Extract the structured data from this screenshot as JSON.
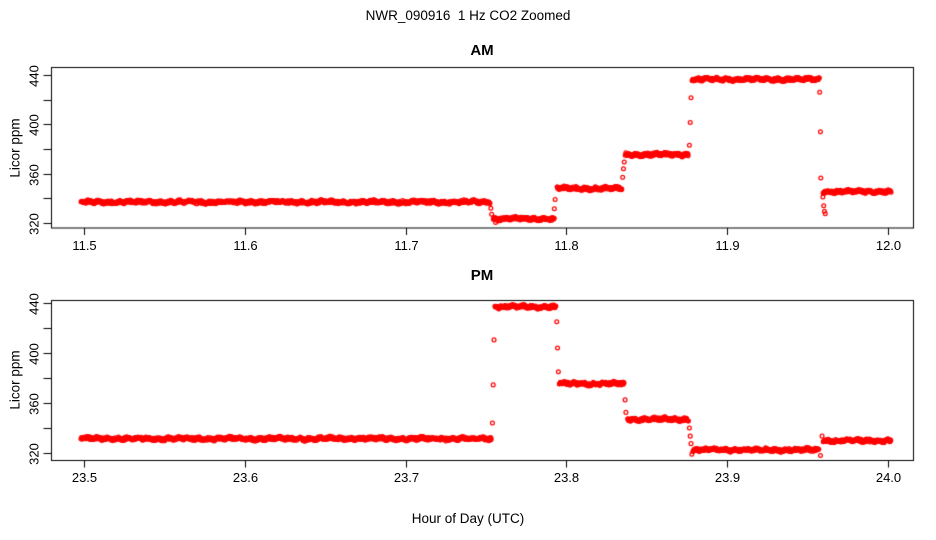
{
  "page": {
    "title": "NWR_090916  1 Hz CO2 Zoomed",
    "xlabel": "Hour of Day (UTC)",
    "background_color": "#ffffff",
    "axis_color": "#000000"
  },
  "chart_data": [
    {
      "type": "scatter",
      "panel": "AM",
      "title": "AM",
      "ylabel": "Licor ppm",
      "marker": "open-circle",
      "point_color": "#ff0000",
      "grid": false,
      "legend": false,
      "xlim": [
        11.5,
        12.0
      ],
      "ylim": [
        314,
        446
      ],
      "xticks": {
        "values": [
          11.5,
          11.6,
          11.7,
          11.8,
          11.9,
          12.0
        ],
        "labels": [
          "11.5",
          "11.6",
          "11.7",
          "11.8",
          "11.9",
          "12.0"
        ]
      },
      "yticks": [
        {
          "v": 320,
          "label": "320"
        },
        {
          "v": 340,
          "label": ""
        },
        {
          "v": 360,
          "label": "360"
        },
        {
          "v": 380,
          "label": ""
        },
        {
          "v": 400,
          "label": "400"
        },
        {
          "v": 420,
          "label": ""
        },
        {
          "v": 440,
          "label": "440"
        }
      ],
      "noise_ppm": 1.1,
      "steps": [
        {
          "x_start": 11.498,
          "x_end": 11.7525,
          "ppm": 337.0
        },
        {
          "x_start": 11.7545,
          "x_end": 11.7925,
          "ppm": 323.5
        },
        {
          "x_start": 11.794,
          "x_end": 11.8345,
          "ppm": 348.0
        },
        {
          "x_start": 11.8365,
          "x_end": 11.876,
          "ppm": 375.5
        },
        {
          "x_start": 11.878,
          "x_end": 11.9575,
          "ppm": 436.5
        },
        {
          "x_start": 11.9595,
          "x_end": 12.002,
          "ppm": 345.5
        }
      ],
      "transition_points": [
        [
          11.753,
          332.0
        ],
        [
          11.7535,
          327.0
        ],
        [
          11.756,
          320.5
        ],
        [
          11.7925,
          331.5
        ],
        [
          11.793,
          339.0
        ],
        [
          11.835,
          357.0
        ],
        [
          11.8355,
          364.0
        ],
        [
          11.836,
          369.5
        ],
        [
          11.8765,
          383.0
        ],
        [
          11.877,
          401.5
        ],
        [
          11.8775,
          421.5
        ],
        [
          11.9575,
          426.0
        ],
        [
          11.958,
          394.0
        ],
        [
          11.9582,
          356.5
        ],
        [
          11.9595,
          341.0
        ],
        [
          11.96,
          334.0
        ],
        [
          11.9605,
          329.5
        ],
        [
          11.961,
          327.5
        ]
      ]
    },
    {
      "type": "scatter",
      "panel": "PM",
      "title": "PM",
      "ylabel": "Licor ppm",
      "marker": "open-circle",
      "point_color": "#ff0000",
      "grid": false,
      "legend": false,
      "xlim": [
        23.5,
        24.0
      ],
      "ylim": [
        314,
        446
      ],
      "xticks": {
        "values": [
          23.5,
          23.6,
          23.7,
          23.8,
          23.9,
          24.0
        ],
        "labels": [
          "23.5",
          "23.6",
          "23.7",
          "23.8",
          "23.9",
          "24.0"
        ]
      },
      "yticks": [
        {
          "v": 320,
          "label": "320"
        },
        {
          "v": 340,
          "label": ""
        },
        {
          "v": 360,
          "label": "360"
        },
        {
          "v": 380,
          "label": ""
        },
        {
          "v": 400,
          "label": "400"
        },
        {
          "v": 420,
          "label": ""
        },
        {
          "v": 440,
          "label": "440"
        }
      ],
      "noise_ppm": 1.1,
      "steps": [
        {
          "x_start": 23.498,
          "x_end": 23.7535,
          "ppm": 331.5
        },
        {
          "x_start": 23.7555,
          "x_end": 23.7935,
          "ppm": 437.0
        },
        {
          "x_start": 23.7955,
          "x_end": 23.836,
          "ppm": 375.5
        },
        {
          "x_start": 23.838,
          "x_end": 23.876,
          "ppm": 347.0
        },
        {
          "x_start": 23.8785,
          "x_end": 23.957,
          "ppm": 322.5
        },
        {
          "x_start": 23.9595,
          "x_end": 24.002,
          "ppm": 330.0
        }
      ],
      "transition_points": [
        [
          23.754,
          344.0
        ],
        [
          23.7545,
          374.5
        ],
        [
          23.755,
          410.5
        ],
        [
          23.794,
          425.0
        ],
        [
          23.7945,
          404.0
        ],
        [
          23.795,
          385.0
        ],
        [
          23.8365,
          362.5
        ],
        [
          23.837,
          352.5
        ],
        [
          23.8765,
          340.0
        ],
        [
          23.877,
          333.5
        ],
        [
          23.8775,
          327.5
        ],
        [
          23.878,
          319.0
        ],
        [
          23.958,
          318.0
        ],
        [
          23.959,
          333.5
        ]
      ]
    }
  ]
}
